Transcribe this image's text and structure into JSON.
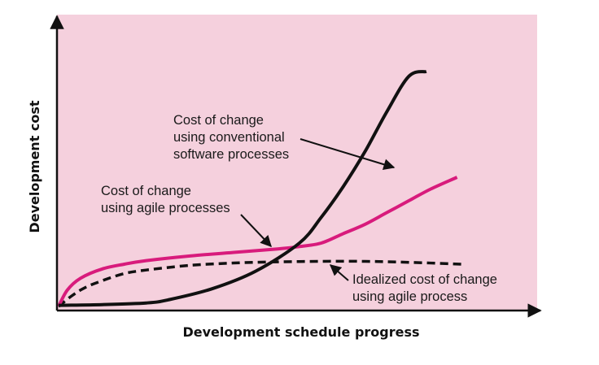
{
  "chart_data": {
    "type": "line",
    "xlabel": "Development schedule progress",
    "ylabel": "Development cost",
    "xlim": [
      0,
      100
    ],
    "ylim": [
      0,
      100
    ],
    "grid": false,
    "background_color": "#f5d0dd",
    "series": [
      {
        "key": "conventional",
        "color": "#111111",
        "style": "solid",
        "x": [
          0,
          10,
          20,
          25,
          35,
          45,
          55,
          60,
          65,
          70,
          75,
          80,
          84
        ],
        "y": [
          0.5,
          0.8,
          1.5,
          2.8,
          7.5,
          15,
          27,
          38,
          51,
          66,
          83,
          98,
          100
        ]
      },
      {
        "key": "agile",
        "color": "#d81b7c",
        "style": "solid",
        "x": [
          0,
          2,
          5,
          10,
          15,
          20,
          30,
          40,
          50,
          55,
          60,
          65,
          70,
          75,
          80,
          85,
          91
        ],
        "y": [
          0,
          7,
          12,
          16,
          18,
          19.5,
          21.5,
          23,
          24.5,
          25.5,
          27,
          31,
          35,
          40,
          45,
          50,
          55
        ]
      },
      {
        "key": "idealized",
        "color": "#111111",
        "style": "dashed",
        "x": [
          0,
          3,
          6,
          10,
          15,
          20,
          30,
          40,
          50,
          60,
          70,
          80,
          92
        ],
        "y": [
          0,
          4.5,
          8,
          11,
          14,
          15.5,
          17.5,
          18.5,
          19,
          19.2,
          19.2,
          18.8,
          18
        ]
      }
    ],
    "annotations": [
      {
        "key": "conventional",
        "lines": [
          "Cost of change",
          "using conventional",
          "software processes"
        ]
      },
      {
        "key": "agile",
        "lines": [
          "Cost of change",
          "using agile processes"
        ]
      },
      {
        "key": "idealized",
        "lines": [
          "Idealized cost of change",
          "using agile process"
        ]
      }
    ]
  }
}
